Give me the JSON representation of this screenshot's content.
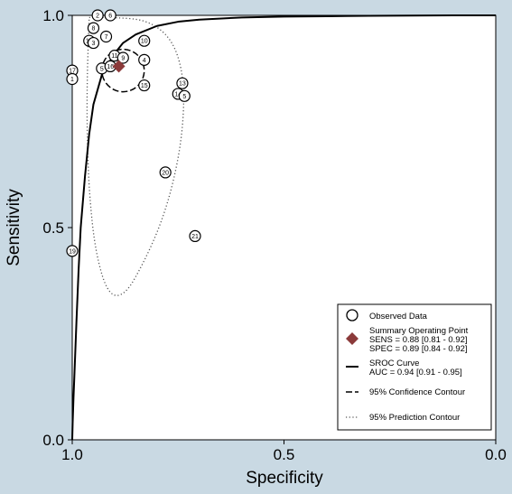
{
  "chart_data": {
    "type": "scatter",
    "xlabel": "Specificity",
    "ylabel": "Sensitivity",
    "xlim": [
      1.0,
      0.0
    ],
    "ylim": [
      0.0,
      1.0
    ],
    "x_reversed": true,
    "x_ticks": [
      "1.0",
      "0.5",
      "0.0"
    ],
    "y_ticks": [
      "0.0",
      "0.5",
      "1.0"
    ],
    "grid": false,
    "legend_position": "bottom-right",
    "observed": [
      {
        "label": "2",
        "spec": 0.94,
        "sens": 1.0
      },
      {
        "label": "6",
        "spec": 0.91,
        "sens": 1.0
      },
      {
        "label": "8",
        "spec": 0.95,
        "sens": 0.97
      },
      {
        "label": "7",
        "spec": 0.92,
        "sens": 0.95
      },
      {
        "label": "12",
        "spec": 0.96,
        "sens": 0.94
      },
      {
        "label": "3",
        "spec": 0.95,
        "sens": 0.935
      },
      {
        "label": "10",
        "spec": 0.83,
        "sens": 0.94
      },
      {
        "label": "11",
        "spec": 0.9,
        "sens": 0.905
      },
      {
        "label": "9",
        "spec": 0.88,
        "sens": 0.9
      },
      {
        "label": "4",
        "spec": 0.83,
        "sens": 0.895
      },
      {
        "label": "5",
        "spec": 0.93,
        "sens": 0.875
      },
      {
        "label": "16",
        "spec": 0.91,
        "sens": 0.88
      },
      {
        "label": "17",
        "spec": 1.0,
        "sens": 0.87
      },
      {
        "label": "1",
        "spec": 1.0,
        "sens": 0.85
      },
      {
        "label": "13",
        "spec": 0.74,
        "sens": 0.84
      },
      {
        "label": "15",
        "spec": 0.83,
        "sens": 0.835
      },
      {
        "label": "14",
        "spec": 0.75,
        "sens": 0.815
      },
      {
        "label": "5",
        "spec": 0.735,
        "sens": 0.81
      },
      {
        "label": "20",
        "spec": 0.78,
        "sens": 0.63
      },
      {
        "label": "21",
        "spec": 0.71,
        "sens": 0.48
      },
      {
        "label": "19",
        "spec": 1.0,
        "sens": 0.445
      }
    ],
    "summary_point": {
      "spec": 0.89,
      "sens": 0.88,
      "color": "#8b3a3a"
    },
    "sroc_curve": {
      "spec": [
        1.0,
        0.999,
        0.997,
        0.995,
        0.99,
        0.985,
        0.98,
        0.97,
        0.96,
        0.95,
        0.93,
        0.9,
        0.88,
        0.85,
        0.8,
        0.75,
        0.7,
        0.6,
        0.5,
        0.4,
        0.3,
        0.2,
        0.1,
        0.0
      ],
      "sens": [
        0.0,
        0.04,
        0.1,
        0.15,
        0.28,
        0.4,
        0.5,
        0.62,
        0.72,
        0.79,
        0.86,
        0.91,
        0.935,
        0.955,
        0.975,
        0.985,
        0.99,
        0.995,
        0.997,
        0.998,
        0.999,
        0.9995,
        1.0,
        1.0
      ]
    },
    "confidence_contour": {
      "center_spec": 0.88,
      "center_sens": 0.87,
      "half_width": 0.05,
      "half_height": 0.05,
      "tilt_deg": -20
    },
    "prediction_contour": {
      "spec": [
        0.96,
        0.9,
        0.83,
        0.78,
        0.75,
        0.735,
        0.74,
        0.76,
        0.79,
        0.83,
        0.875,
        0.915,
        0.945,
        0.96,
        0.965,
        0.965,
        0.962,
        0.96
      ],
      "sens": [
        0.995,
        0.995,
        0.99,
        0.96,
        0.91,
        0.83,
        0.72,
        0.61,
        0.51,
        0.42,
        0.34,
        0.34,
        0.44,
        0.58,
        0.72,
        0.84,
        0.94,
        0.995
      ]
    },
    "legend": {
      "observed": "Observed Data",
      "summary_title": "Summary Operating Point",
      "summary_sens": "SENS = 0.88 [0.81 - 0.92]",
      "summary_spec": "SPEC = 0.89 [0.84 - 0.92]",
      "sroc_title": "SROC Curve",
      "sroc_auc": "AUC = 0.94 [0.91 - 0.95]",
      "confidence": "95% Confidence Contour",
      "prediction": "95% Prediction Contour"
    }
  },
  "colors": {
    "background": "#c9d9e3",
    "plot_area": "#ffffff",
    "summary_marker": "#8b3a3a"
  }
}
